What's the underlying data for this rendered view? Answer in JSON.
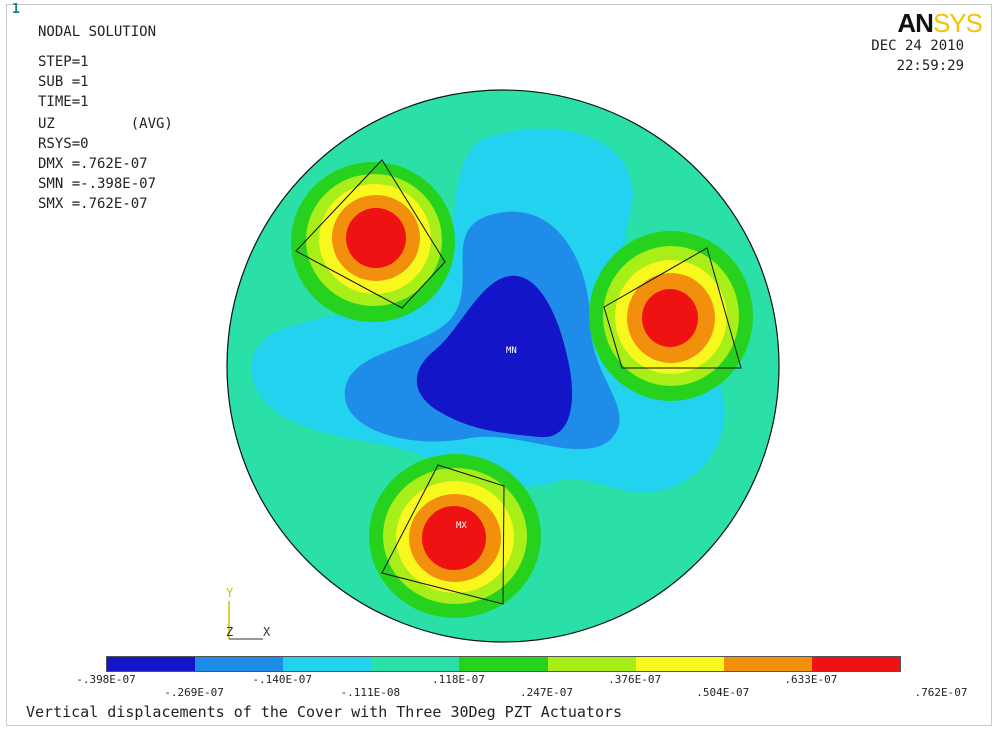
{
  "window_number": "1",
  "logo": {
    "an": "AN",
    "sys": "SYS"
  },
  "info": [
    "NODAL SOLUTION",
    "STEP=1",
    "SUB =1",
    "TIME=1",
    "UZ         (AVG)",
    "RSYS=0",
    "DMX =.762E-07",
    "SMN =-.398E-07",
    "SMX =.762E-07"
  ],
  "date": "DEC 24 2010",
  "time": "22:59:29",
  "labels": {
    "min": "MN",
    "max": "MX"
  },
  "triad": {
    "y": "Y",
    "z": "Z",
    "x": "X"
  },
  "legend": {
    "colors": [
      "#1414c8",
      "#1e8ce8",
      "#22d2ee",
      "#2ae0a8",
      "#26d21e",
      "#a8ee18",
      "#f8f81e",
      "#f2900e",
      "#ee1212"
    ],
    "ticks_top": [
      ".-398E-07",
      ".118E-07",
      ".247E-07",
      ".376E-07",
      ".504E-07",
      ".633E-07"
    ],
    "ticks_bottom": [
      "-.269E-07",
      "-.140E-07",
      "-.111E-08",
      ".762E-07"
    ],
    "ticks": [
      "-.398E-07",
      "-.269E-07",
      "-.140E-07",
      "-.111E-08",
      ".118E-07",
      ".247E-07",
      ".376E-07",
      ".504E-07",
      ".633E-07",
      ".762E-07"
    ]
  },
  "caption": "Vertical displacements of the Cover with Three 30Deg PZT Actuators",
  "colors": {
    "frame": "#c9c9c9",
    "logo_accent": "#f3c400",
    "window_number": "#1f7e82"
  }
}
